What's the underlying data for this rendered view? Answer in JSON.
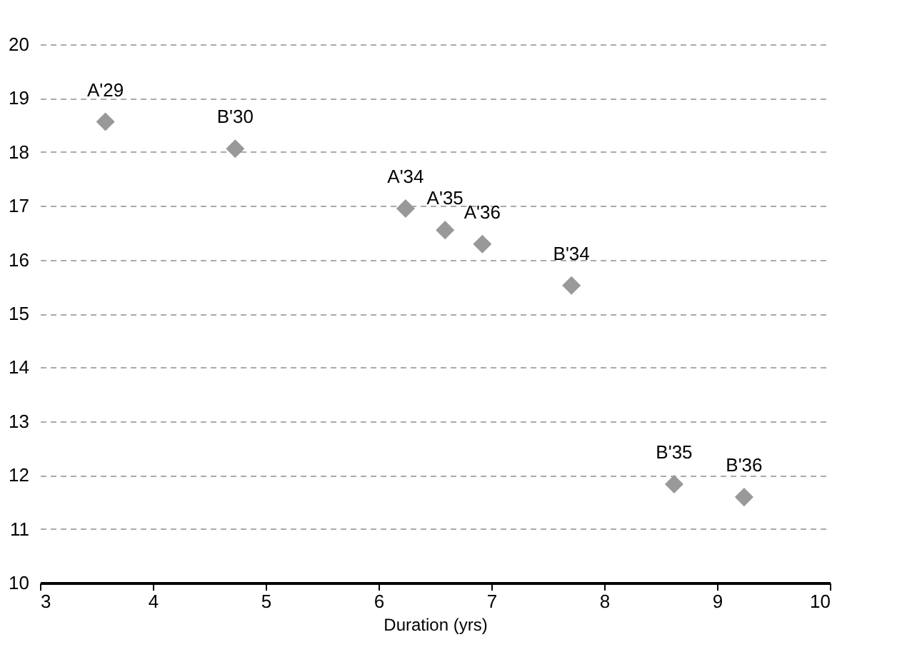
{
  "chart_data": {
    "type": "scatter",
    "xlabel": "Duration (yrs)",
    "x": [
      3.58,
      4.73,
      6.24,
      6.59,
      6.92,
      7.71,
      8.62,
      9.24
    ],
    "series": [
      {
        "color": "#999999",
        "values": [
          18.56,
          18.06,
          16.95,
          16.55,
          16.29,
          15.52,
          11.83,
          11.59
        ]
      }
    ],
    "annotations": [
      {
        "text": "A'29",
        "x": 3.58,
        "y": 18.56
      },
      {
        "text": "B'30",
        "x": 4.73,
        "y": 18.06
      },
      {
        "text": "A'34",
        "x": 6.24,
        "y": 16.95
      },
      {
        "text": "A'35",
        "x": 6.59,
        "y": 16.55
      },
      {
        "text": "A'36",
        "x": 6.92,
        "y": 16.29
      },
      {
        "text": "B'34",
        "x": 7.71,
        "y": 15.52
      },
      {
        "text": "B'35",
        "x": 8.62,
        "y": 11.83
      },
      {
        "text": "B'36",
        "x": 9.24,
        "y": 11.59
      }
    ],
    "xlim": [
      3,
      10
    ],
    "xticks": [
      3,
      4,
      5,
      6,
      7,
      8,
      9,
      10
    ],
    "ylim": [
      10,
      20
    ],
    "yticks": [
      10,
      11,
      12,
      13,
      14,
      15,
      16,
      17,
      18,
      19,
      20
    ],
    "grid": "y",
    "marker": "diamond"
  }
}
